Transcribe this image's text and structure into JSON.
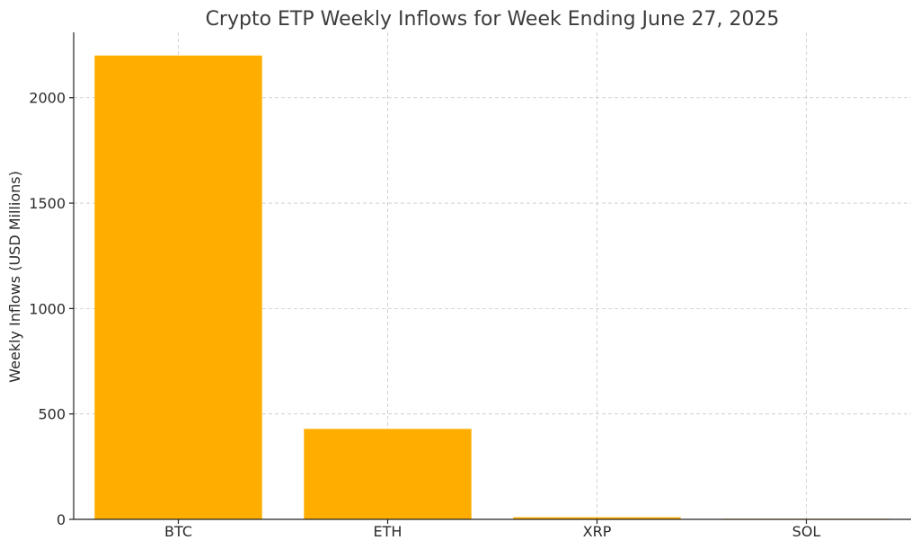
{
  "chart_data": {
    "type": "bar",
    "title": "Crypto ETP Weekly Inflows for Week Ending June 27, 2025",
    "xlabel": "",
    "ylabel": "Weekly Inflows (USD Millions)",
    "categories": [
      "BTC",
      "ETH",
      "XRP",
      "SOL"
    ],
    "values": [
      2200,
      429,
      10,
      3
    ],
    "ylim": [
      0,
      2310
    ],
    "yticks": [
      0,
      500,
      1000,
      1500,
      2000
    ],
    "grid": true,
    "bar_color": "#FFAE00"
  }
}
